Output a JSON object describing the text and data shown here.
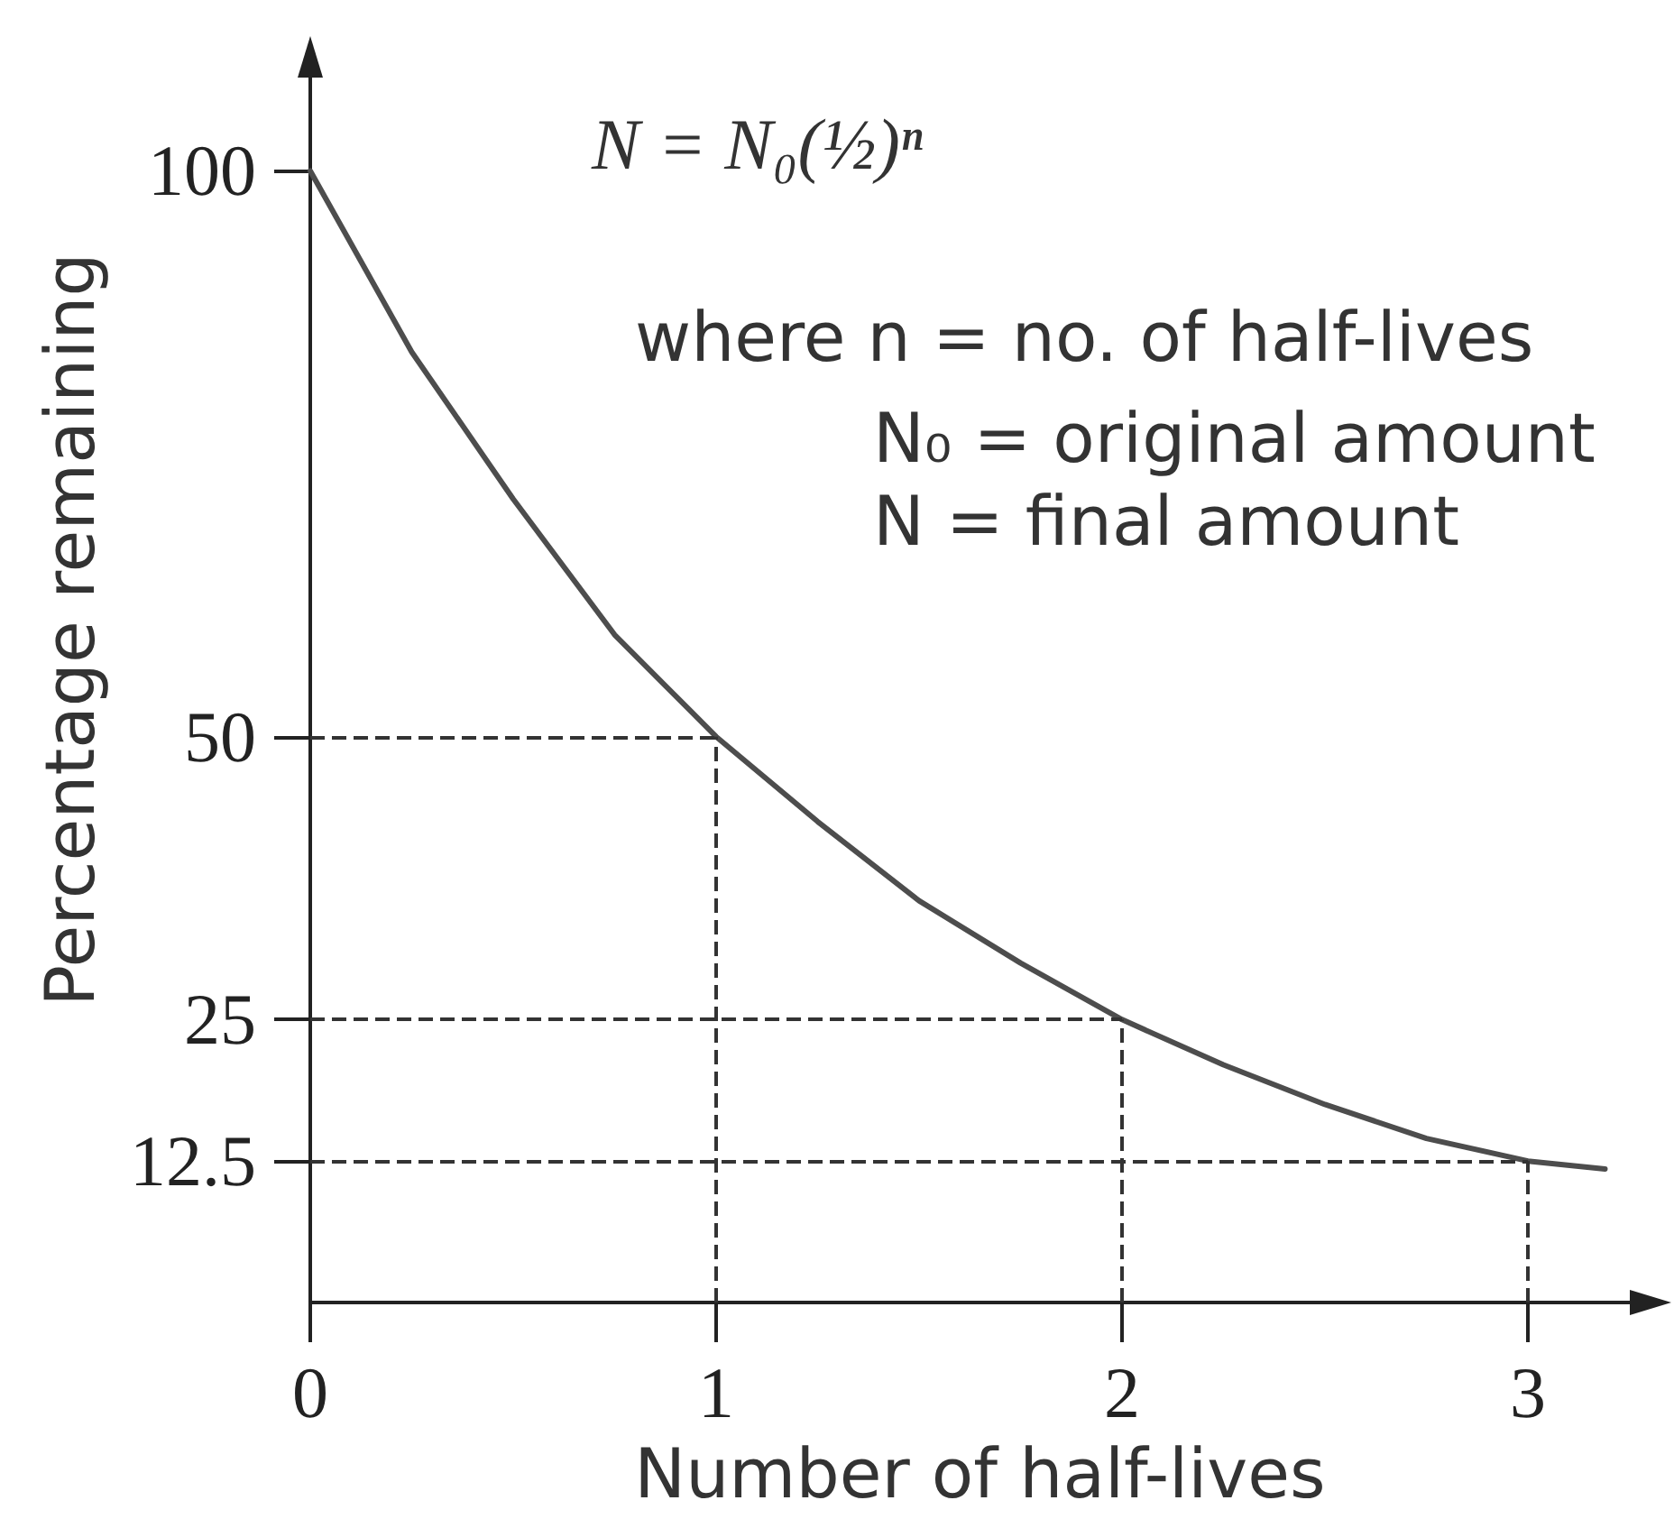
{
  "chart_data": {
    "type": "line",
    "xlabel": "Number of half-lives",
    "ylabel": "Percentage remaining",
    "x": [
      0,
      0.25,
      0.5,
      0.75,
      1,
      1.25,
      1.5,
      1.75,
      2,
      2.25,
      2.5,
      2.75,
      3,
      3.19
    ],
    "series": [
      {
        "color": "#4d4d4d",
        "values": [
          100,
          84,
          71,
          59,
          50,
          42.5,
          35.5,
          30,
          25,
          21,
          17.5,
          14.5,
          12.5,
          11.8
        ]
      }
    ],
    "xlim": [
      0,
      3.3
    ],
    "ylim": [
      0,
      110
    ],
    "xticks": [
      0,
      1,
      2,
      3
    ],
    "yticks": [
      12.5,
      25,
      50,
      100
    ],
    "marker": "none",
    "line_style": "solid",
    "ref_lines": [
      {
        "axis": "y",
        "value": 50,
        "color": "#333333",
        "line_style": "dashed"
      },
      {
        "axis": "y",
        "value": 25,
        "color": "#333333",
        "line_style": "dashed"
      },
      {
        "axis": "y",
        "value": 12.5,
        "color": "#333333",
        "line_style": "dashed"
      },
      {
        "axis": "x",
        "value": 1,
        "color": "#333333",
        "line_style": "dashed"
      },
      {
        "axis": "x",
        "value": 2,
        "color": "#333333",
        "line_style": "dashed"
      },
      {
        "axis": "x",
        "value": 3,
        "color": "#333333",
        "line_style": "dashed"
      }
    ],
    "annotations": [
      "N = N₀(½)ⁿ",
      "where n = no. of half-lives",
      "N₀ = original amount",
      "N = final amount"
    ]
  }
}
